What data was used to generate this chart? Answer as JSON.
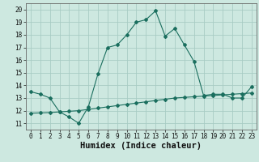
{
  "xlabel": "Humidex (Indice chaleur)",
  "background_color": "#cde8e0",
  "grid_color": "#a8ccc4",
  "line_color": "#1a6e5e",
  "xlim": [
    -0.5,
    23.5
  ],
  "ylim": [
    10.5,
    20.5
  ],
  "yticks": [
    11,
    12,
    13,
    14,
    15,
    16,
    17,
    18,
    19,
    20
  ],
  "xticks": [
    0,
    1,
    2,
    3,
    4,
    5,
    6,
    7,
    8,
    9,
    10,
    11,
    12,
    13,
    14,
    15,
    16,
    17,
    18,
    19,
    20,
    21,
    22,
    23
  ],
  "series1_x": [
    0,
    1,
    2,
    3,
    4,
    5,
    6,
    7,
    8,
    9,
    10,
    11,
    12,
    13,
    14,
    15,
    16,
    17,
    18,
    19,
    20,
    21,
    22,
    23
  ],
  "series1_y": [
    13.5,
    13.3,
    13.0,
    11.9,
    11.5,
    11.0,
    12.3,
    14.9,
    17.0,
    17.2,
    18.0,
    19.0,
    19.2,
    19.9,
    17.9,
    18.5,
    17.2,
    15.9,
    13.2,
    13.3,
    13.3,
    13.0,
    13.0,
    13.9
  ],
  "series2_x": [
    0,
    1,
    2,
    3,
    4,
    5,
    6,
    7,
    8,
    9,
    10,
    11,
    12,
    13,
    14,
    15,
    16,
    17,
    18,
    19,
    20,
    21,
    22,
    23
  ],
  "series2_y": [
    11.8,
    11.82,
    11.85,
    11.9,
    11.95,
    12.0,
    12.1,
    12.2,
    12.3,
    12.4,
    12.5,
    12.6,
    12.7,
    12.8,
    12.9,
    13.0,
    13.05,
    13.1,
    13.15,
    13.2,
    13.25,
    13.3,
    13.35,
    13.4
  ],
  "tick_fontsize": 5.5,
  "xlabel_fontsize": 7.5
}
